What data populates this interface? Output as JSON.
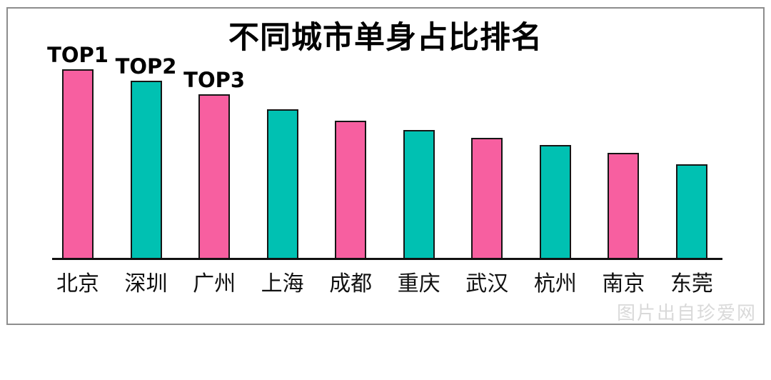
{
  "watermark": {
    "text": "图片出自珍爱网"
  },
  "chart_data": {
    "type": "bar",
    "title": "不同城市单身占比排名",
    "categories": [
      "北京",
      "深圳",
      "广州",
      "上海",
      "成都",
      "重庆",
      "武汉",
      "杭州",
      "南京",
      "东莞"
    ],
    "values": [
      100,
      94,
      87,
      79,
      73,
      68,
      64,
      60,
      56,
      50
    ],
    "value_scale": "relative bar height, tallest bar = 100 (no numeric axis labels shown)",
    "annotations": [
      "TOP1",
      "TOP2",
      "TOP3"
    ],
    "xlabel": "",
    "ylabel": "",
    "legend": false,
    "grid": false,
    "colors": {
      "bar_pink": "#f75fa0",
      "bar_teal": "#00c1b2",
      "bar_outline": "#151515",
      "axis_line": "#111111",
      "title_text": "#000000",
      "frame_border": "#8d8d8d",
      "watermark_text": "#d9d9d9"
    }
  }
}
